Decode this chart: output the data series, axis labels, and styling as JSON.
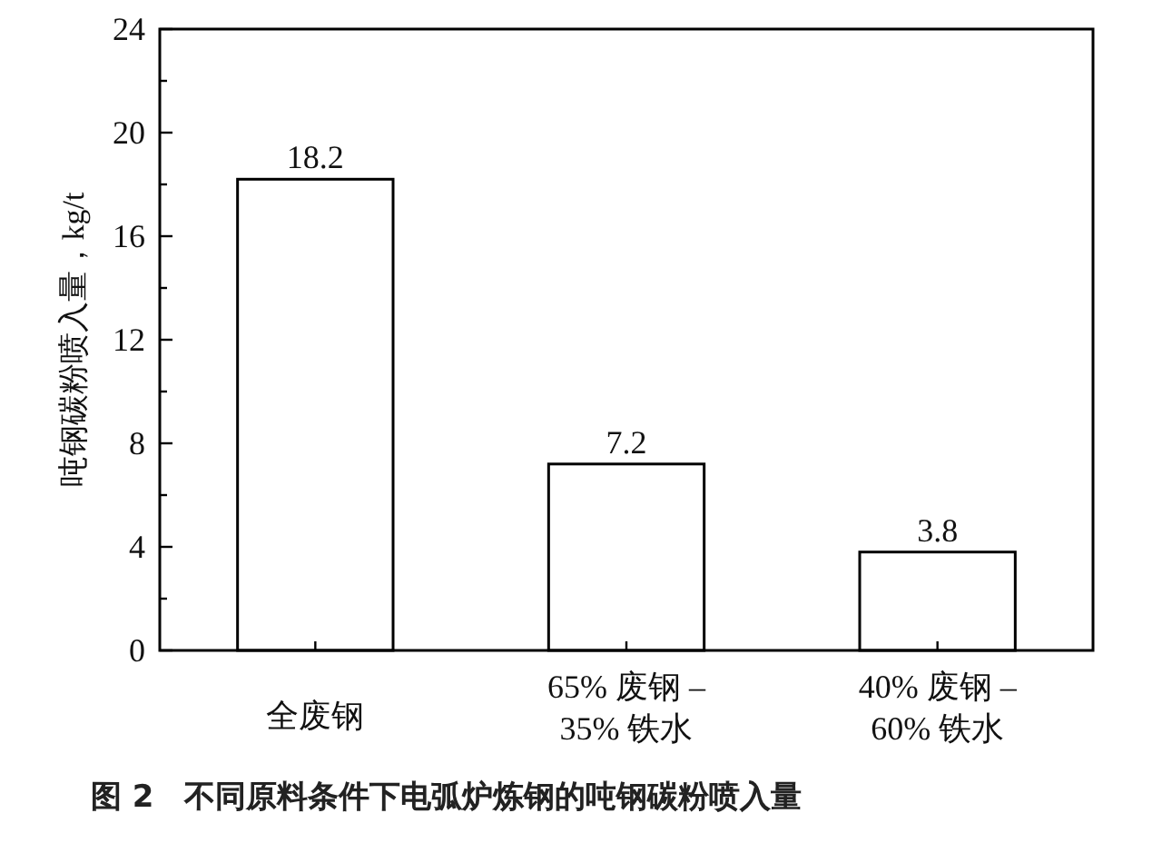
{
  "chart_data": {
    "type": "bar",
    "title": "图 2　不同原料条件下电弧炉炼钢的吨钢碳粉喷入量",
    "ylabel": "吨钢碳粉喷入量，kg/t",
    "categories": [
      "全废钢",
      "65% 废钢 –\n35% 铁水",
      "40% 废钢 –\n60% 铁水"
    ],
    "values": [
      18.2,
      7.2,
      3.8
    ],
    "color": "#ffffff",
    "data_labels": true,
    "ylim": [
      0,
      24
    ],
    "yticks": [
      0,
      {
        "value": 2,
        "label": null
      },
      4,
      {
        "value": 6,
        "label": null
      },
      8,
      {
        "value": 10,
        "label": null
      },
      12,
      {
        "value": 14,
        "label": null
      },
      16,
      {
        "value": 18,
        "label": null
      },
      20,
      {
        "value": 22,
        "label": null
      },
      24
    ]
  }
}
